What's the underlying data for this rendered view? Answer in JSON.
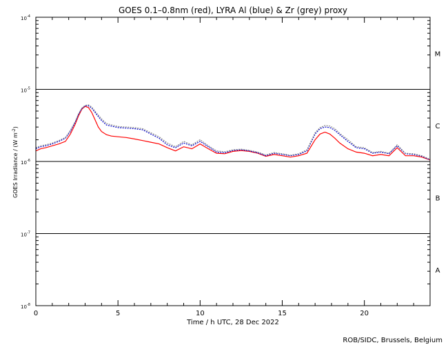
{
  "chart_data": {
    "type": "line",
    "title": "GOES 0.1–0.8nm (red), LYRA Al (blue) & Zr (grey) proxy",
    "xlabel": "Time / h UTC, 28 Dec 2022",
    "ylabel_main": "GOES Irradiance / (W m",
    "ylabel_exp": "-2",
    "ylabel_close": ")",
    "xlim": [
      0,
      24
    ],
    "ylim": [
      1e-08,
      0.0001
    ],
    "yscale": "log",
    "x_ticks": [
      {
        "v": 0,
        "label": "0"
      },
      {
        "v": 5,
        "label": "5"
      },
      {
        "v": 10,
        "label": "10"
      },
      {
        "v": 15,
        "label": "15"
      },
      {
        "v": 20,
        "label": "20"
      }
    ],
    "y_ticks": [
      {
        "v": 1e-08,
        "base": "10",
        "exp": "-8"
      },
      {
        "v": 1e-07,
        "base": "10",
        "exp": "-7"
      },
      {
        "v": 1e-06,
        "base": "10",
        "exp": "-6"
      },
      {
        "v": 1e-05,
        "base": "10",
        "exp": "-5"
      },
      {
        "v": 0.0001,
        "base": "10",
        "exp": "-4"
      }
    ],
    "flare_classes": [
      {
        "label": "A",
        "v": 3.16e-08
      },
      {
        "label": "B",
        "v": 3.16e-07
      },
      {
        "label": "C",
        "v": 3.16e-06
      },
      {
        "label": "M",
        "v": 3.16e-05
      }
    ],
    "class_lines": [
      1e-06,
      1e-05,
      1e-07
    ],
    "series": [
      {
        "color": "#ff0000",
        "x": [
          0,
          0.3,
          0.6,
          1.0,
          1.4,
          1.8,
          2.1,
          2.4,
          2.6,
          2.8,
          3.0,
          3.2,
          3.4,
          3.6,
          3.8,
          4.0,
          4.3,
          4.6,
          5.0,
          5.5,
          6.0,
          6.5,
          7.0,
          7.5,
          8.0,
          8.5,
          9.0,
          9.5,
          10.0,
          10.5,
          11.0,
          11.5,
          12.0,
          12.5,
          13.0,
          13.5,
          14.0,
          14.5,
          15.0,
          15.5,
          16.0,
          16.5,
          17.0,
          17.3,
          17.6,
          17.9,
          18.2,
          18.5,
          19.0,
          19.5,
          20.0,
          20.5,
          21.0,
          21.5,
          22.0,
          22.5,
          23.0,
          23.5,
          24.0
        ],
        "y": [
          1.4e-06,
          1.5e-06,
          1.55e-06,
          1.65e-06,
          1.75e-06,
          1.9e-06,
          2.4e-06,
          3.3e-06,
          4.3e-06,
          5.3e-06,
          5.8e-06,
          5.6e-06,
          4.8e-06,
          3.8e-06,
          3e-06,
          2.6e-06,
          2.35e-06,
          2.25e-06,
          2.2e-06,
          2.15e-06,
          2.05e-06,
          1.95e-06,
          1.85e-06,
          1.75e-06,
          1.55e-06,
          1.4e-06,
          1.6e-06,
          1.5e-06,
          1.75e-06,
          1.5e-06,
          1.3e-06,
          1.28e-06,
          1.38e-06,
          1.42e-06,
          1.38e-06,
          1.3e-06,
          1.18e-06,
          1.25e-06,
          1.2e-06,
          1.15e-06,
          1.2e-06,
          1.3e-06,
          2e-06,
          2.4e-06,
          2.55e-06,
          2.4e-06,
          2.1e-06,
          1.8e-06,
          1.5e-06,
          1.35e-06,
          1.3e-06,
          1.2e-06,
          1.25e-06,
          1.2e-06,
          1.55e-06,
          1.2e-06,
          1.2e-06,
          1.15e-06,
          1.05e-06
        ]
      },
      {
        "color": "#0000cc",
        "x": [
          0,
          0.3,
          0.6,
          1.0,
          1.4,
          1.8,
          2.1,
          2.4,
          2.6,
          2.8,
          3.0,
          3.2,
          3.4,
          3.6,
          3.8,
          4.0,
          4.3,
          5.0,
          5.5,
          6.0,
          6.5,
          7.0,
          7.5,
          8.0,
          8.5,
          9.0,
          9.5,
          10.0,
          10.5,
          11.0,
          11.5,
          12.0,
          12.5,
          13.0,
          13.5,
          14.0,
          14.5,
          15.0,
          15.5,
          16.0,
          16.5,
          17.0,
          17.3,
          17.6,
          17.9,
          18.2,
          18.5,
          19.0,
          19.5,
          20.0,
          20.5,
          21.0,
          21.5,
          22.0,
          22.5,
          23.0,
          23.5,
          24.0
        ],
        "y": [
          1.5e-06,
          1.6e-06,
          1.65e-06,
          1.75e-06,
          1.9e-06,
          2.1e-06,
          2.6e-06,
          3.5e-06,
          4.5e-06,
          5.4e-06,
          5.9e-06,
          5.9e-06,
          5.5e-06,
          4.8e-06,
          4.2e-06,
          3.7e-06,
          3.2e-06,
          2.95e-06,
          2.9e-06,
          2.85e-06,
          2.75e-06,
          2.4e-06,
          2.1e-06,
          1.7e-06,
          1.55e-06,
          1.8e-06,
          1.65e-06,
          1.9e-06,
          1.6e-06,
          1.35e-06,
          1.32e-06,
          1.42e-06,
          1.45e-06,
          1.4e-06,
          1.32e-06,
          1.2e-06,
          1.3e-06,
          1.25e-06,
          1.2e-06,
          1.25e-06,
          1.4e-06,
          2.4e-06,
          2.85e-06,
          3e-06,
          2.95e-06,
          2.7e-06,
          2.35e-06,
          1.9e-06,
          1.55e-06,
          1.5e-06,
          1.3e-06,
          1.35e-06,
          1.28e-06,
          1.65e-06,
          1.28e-06,
          1.25e-06,
          1.18e-06,
          1.05e-06
        ]
      },
      {
        "color": "#888888",
        "x": [
          0,
          0.3,
          0.6,
          1.0,
          1.4,
          1.8,
          2.1,
          2.4,
          2.6,
          2.8,
          3.0,
          3.2,
          3.4,
          3.6,
          3.8,
          4.0,
          4.3,
          5.0,
          5.5,
          6.0,
          6.5,
          7.0,
          7.5,
          8.0,
          8.5,
          9.0,
          9.5,
          10.0,
          10.5,
          11.0,
          11.5,
          12.0,
          12.5,
          13.0,
          13.5,
          14.0,
          14.5,
          15.0,
          15.5,
          16.0,
          16.5,
          17.0,
          17.3,
          17.6,
          17.9,
          18.2,
          18.5,
          19.0,
          19.5,
          20.0,
          20.5,
          21.0,
          21.5,
          22.0,
          22.5,
          23.0,
          23.5,
          24.0
        ],
        "y": [
          1.55e-06,
          1.65e-06,
          1.7e-06,
          1.8e-06,
          1.95e-06,
          2.15e-06,
          2.7e-06,
          3.6e-06,
          4.6e-06,
          5.5e-06,
          6e-06,
          6.1e-06,
          5.7e-06,
          5e-06,
          4.4e-06,
          3.9e-06,
          3.35e-06,
          3.05e-06,
          3e-06,
          2.95e-06,
          2.85e-06,
          2.5e-06,
          2.2e-06,
          1.8e-06,
          1.6e-06,
          1.9e-06,
          1.7e-06,
          2e-06,
          1.65e-06,
          1.4e-06,
          1.36e-06,
          1.45e-06,
          1.48e-06,
          1.43e-06,
          1.35e-06,
          1.23e-06,
          1.33e-06,
          1.28e-06,
          1.22e-06,
          1.28e-06,
          1.45e-06,
          2.5e-06,
          2.95e-06,
          3.15e-06,
          3.1e-06,
          2.85e-06,
          2.45e-06,
          2e-06,
          1.6e-06,
          1.55e-06,
          1.33e-06,
          1.38e-06,
          1.3e-06,
          1.7e-06,
          1.3e-06,
          1.28e-06,
          1.2e-06,
          1.07e-06
        ]
      }
    ]
  },
  "footer": {
    "credit": "ROB/SIDC, Brussels, Belgium"
  }
}
